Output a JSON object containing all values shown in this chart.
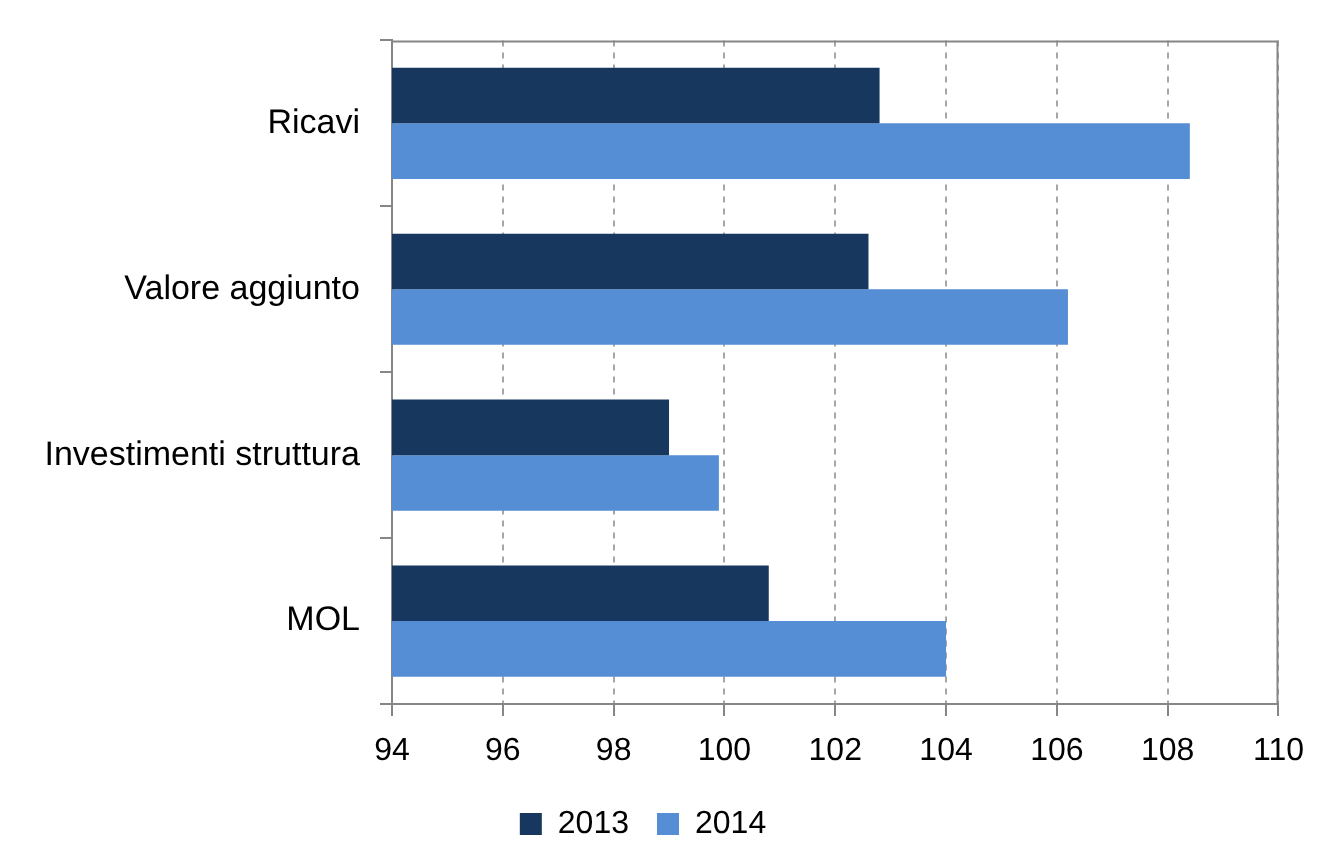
{
  "chart_data": {
    "type": "bar",
    "orientation": "horizontal",
    "categories": [
      "Ricavi",
      "Valore aggiunto",
      "Investimenti struttura",
      "MOL"
    ],
    "series": [
      {
        "name": "2013",
        "color": "#17375e",
        "values": [
          102.8,
          102.6,
          99.0,
          100.8
        ]
      },
      {
        "name": "2014",
        "color": "#558ed5",
        "values": [
          108.4,
          106.2,
          99.9,
          104.0
        ]
      }
    ],
    "xlim": [
      94,
      110
    ],
    "xticks": [
      94,
      96,
      98,
      100,
      102,
      104,
      106,
      108,
      110
    ],
    "grid": "x",
    "legend": "bottom"
  }
}
